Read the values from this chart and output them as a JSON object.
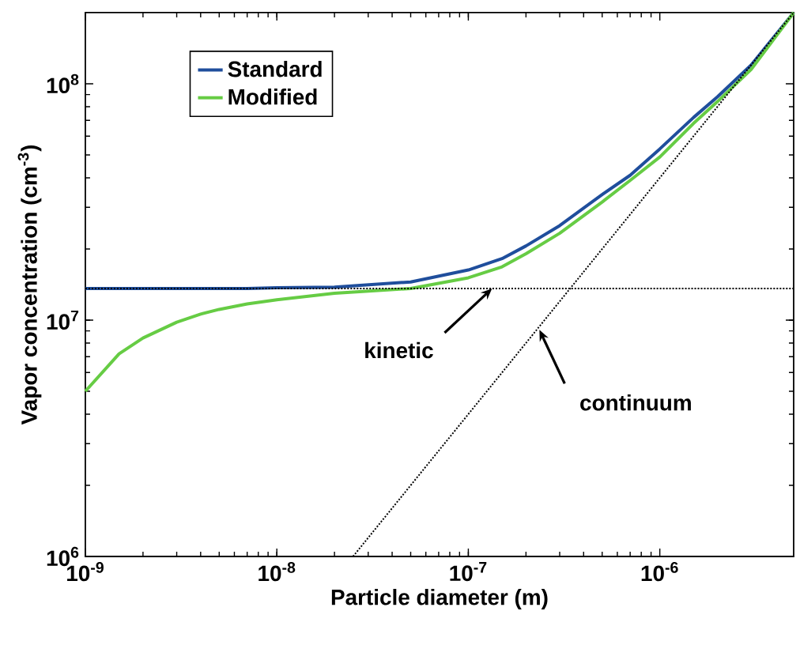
{
  "chart_data": {
    "type": "line",
    "xlabel": "Particle diameter (m)",
    "ylabel": "Vapor concentration (cm$^{-3}$)",
    "log": "xy",
    "grid": false,
    "legend": "top left",
    "xlim": [
      1e-09,
      5e-06
    ],
    "ylim": [
      1000000.0,
      200000000.0
    ],
    "xticks": [
      {
        "value": 1e-09,
        "label": "10$^{-9}$"
      },
      {
        "value": 1e-08,
        "label": "10$^{-8}$"
      },
      {
        "value": 1e-07,
        "label": "10$^{-7}$"
      },
      {
        "value": 1e-06,
        "label": "10$^{-6}$"
      }
    ],
    "yticks": [
      {
        "value": 1000000.0,
        "label": "10$^{6}$"
      },
      {
        "value": 10000000.0,
        "label": "10$^{7}$"
      },
      {
        "value": 100000000.0,
        "label": "10$^{8}$"
      }
    ],
    "x": [
      1e-09,
      1.5e-09,
      2e-09,
      3e-09,
      4e-09,
      5e-09,
      7e-09,
      1e-08,
      2e-08,
      5e-08,
      1e-07,
      1.5e-07,
      2e-07,
      3e-07,
      5e-07,
      7e-07,
      1e-06,
      1.5e-06,
      2e-06,
      3e-06,
      5e-06
    ],
    "series": [
      {
        "name": "Standard",
        "color": "#1f4e9c",
        "line_style": "solid",
        "values": [
          13600000.0,
          13600000.0,
          13600000.0,
          13600000.0,
          13600000.0,
          13600000.0,
          13600000.0,
          13700000.0,
          13800000.0,
          14500000.0,
          16300000.0,
          18200000.0,
          20600000.0,
          25100000.0,
          34000000.0,
          41000000.0,
          53000000.0,
          72000000.0,
          88000000.0,
          120000000.0,
          200000000.0
        ]
      },
      {
        "name": "Modified",
        "color": "#66cc44",
        "line_style": "solid",
        "values": [
          5000000.0,
          7200000.0,
          8400000.0,
          9800000.0,
          10600000.0,
          11100000.0,
          11700000.0,
          12200000.0,
          13000000.0,
          13600000.0,
          15100000.0,
          16800000.0,
          19100000.0,
          23300000.0,
          31600000.0,
          39000000.0,
          49000000.0,
          68000000.0,
          84000000.0,
          115000000.0,
          200000000.0
        ]
      },
      {
        "color": "#000000",
        "line_style": "dotted",
        "x": [
          1e-09,
          5e-06
        ],
        "values": [
          13600000.0,
          13600000.0
        ]
      },
      {
        "color": "#000000",
        "line_style": "dotted",
        "x": [
          2.5e-08,
          5e-06
        ],
        "values": [
          1000000.0,
          200000000.0
        ]
      }
    ],
    "annotations": [
      {
        "text": "kinetic",
        "x": 1.33e-07,
        "y": 13600000.0
      },
      {
        "text": "continuum",
        "x": 2.35e-07,
        "y": 9100000.0
      }
    ]
  }
}
